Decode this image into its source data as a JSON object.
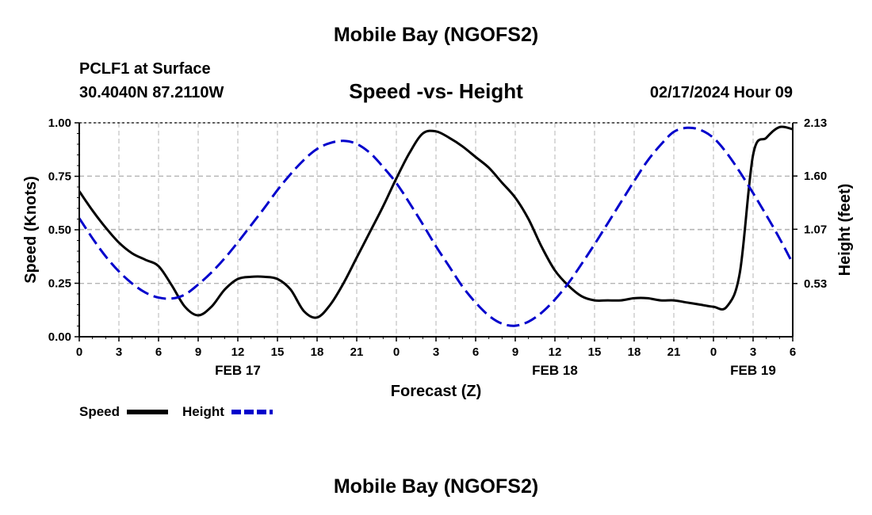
{
  "header": {
    "title_top": "Mobile Bay (NGOFS2)",
    "station": "PCLF1 at Surface",
    "coords": "30.4040N  87.2110W",
    "subtitle": "Speed -vs- Height",
    "datetime": "02/17/2024 Hour 09",
    "title_bottom": "Mobile Bay (NGOFS2)"
  },
  "chart_data": {
    "type": "line",
    "title": "Speed -vs- Height",
    "xlabel": "Forecast (Z)",
    "ylabel_left": "Speed (Knots)",
    "ylabel_right": "Height (feet)",
    "x_range_hours": [
      0,
      54
    ],
    "x_tick_labels": [
      "0",
      "3",
      "6",
      "9",
      "12",
      "15",
      "18",
      "21",
      "0",
      "3",
      "6",
      "9",
      "12",
      "15",
      "18",
      "21",
      "0",
      "3",
      "6"
    ],
    "date_labels": [
      {
        "label": "FEB 17",
        "hour": 12
      },
      {
        "label": "FEB 18",
        "hour": 36
      },
      {
        "label": "FEB 19",
        "hour": 51
      }
    ],
    "y_left": {
      "range": [
        0,
        1
      ],
      "ticks": [
        "0.00",
        "0.25",
        "0.50",
        "0.75",
        "1.00"
      ]
    },
    "y_right": {
      "range": [
        0,
        2.13
      ],
      "ticks": [
        "0.53",
        "1.07",
        "1.60",
        "2.13"
      ]
    },
    "grid": true,
    "legend_position": "bottom-left",
    "series": [
      {
        "name": "Speed",
        "axis": "left",
        "color": "#000000",
        "style": "solid",
        "x": [
          0,
          1,
          2,
          3,
          4,
          5,
          6,
          7,
          8,
          9,
          10,
          11,
          12,
          13,
          14,
          15,
          16,
          17,
          18,
          19,
          20,
          21,
          22,
          23,
          24,
          25,
          26,
          27,
          28,
          29,
          30,
          31,
          32,
          33,
          34,
          35,
          36,
          37,
          38,
          39,
          40,
          41,
          42,
          43,
          44,
          45,
          46,
          47,
          48,
          49,
          50,
          51,
          52,
          53,
          54
        ],
        "y": [
          0.68,
          0.59,
          0.51,
          0.44,
          0.39,
          0.36,
          0.33,
          0.24,
          0.14,
          0.1,
          0.14,
          0.22,
          0.27,
          0.28,
          0.28,
          0.27,
          0.22,
          0.12,
          0.09,
          0.15,
          0.25,
          0.37,
          0.49,
          0.61,
          0.74,
          0.86,
          0.95,
          0.96,
          0.93,
          0.89,
          0.84,
          0.79,
          0.72,
          0.65,
          0.55,
          0.42,
          0.31,
          0.24,
          0.19,
          0.17,
          0.17,
          0.17,
          0.18,
          0.18,
          0.17,
          0.17,
          0.16,
          0.15,
          0.14,
          0.14,
          0.3,
          0.85,
          0.93,
          0.98,
          0.97
        ]
      },
      {
        "name": "Height",
        "axis": "right",
        "color": "#0000cc",
        "style": "dashed",
        "x": [
          0,
          1,
          2,
          3,
          4,
          5,
          6,
          7,
          8,
          9,
          10,
          11,
          12,
          13,
          14,
          15,
          16,
          17,
          18,
          19,
          20,
          21,
          22,
          23,
          24,
          25,
          26,
          27,
          28,
          29,
          30,
          31,
          32,
          33,
          34,
          35,
          36,
          37,
          38,
          39,
          40,
          41,
          42,
          43,
          44,
          45,
          46,
          47,
          48,
          49,
          50,
          51,
          52,
          53,
          54
        ],
        "y": [
          1.18,
          0.98,
          0.8,
          0.65,
          0.53,
          0.44,
          0.39,
          0.38,
          0.42,
          0.52,
          0.64,
          0.78,
          0.94,
          1.11,
          1.28,
          1.46,
          1.62,
          1.76,
          1.87,
          1.93,
          1.95,
          1.92,
          1.83,
          1.69,
          1.53,
          1.33,
          1.12,
          0.9,
          0.7,
          0.5,
          0.34,
          0.21,
          0.13,
          0.11,
          0.15,
          0.24,
          0.37,
          0.53,
          0.72,
          0.92,
          1.13,
          1.34,
          1.55,
          1.75,
          1.91,
          2.04,
          2.08,
          2.06,
          1.98,
          1.83,
          1.64,
          1.43,
          1.21,
          0.98,
          0.73
        ]
      }
    ]
  }
}
